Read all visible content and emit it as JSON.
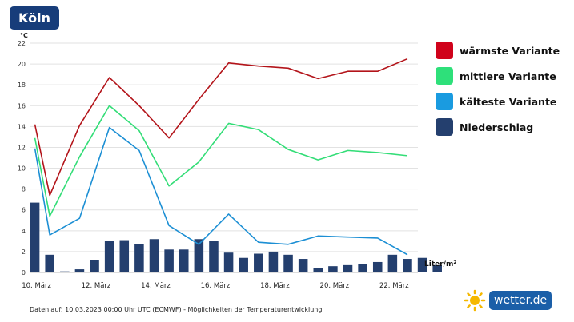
{
  "header": {
    "city": "Köln",
    "unit": "°C"
  },
  "legend": [
    {
      "label": "wärmste Variante",
      "color": "#d0021b",
      "shape": "swatch"
    },
    {
      "label": "mittlere Variante",
      "color": "#2ee07a",
      "shape": "swatch"
    },
    {
      "label": "kälteste Variante",
      "color": "#1a9be0",
      "shape": "swatch"
    },
    {
      "label": "Niederschlag",
      "color": "#243f6e",
      "shape": "swatch"
    }
  ],
  "chart_data": {
    "type": "line",
    "title": "",
    "ylabel": "°C",
    "ylim": [
      0,
      22
    ],
    "yticks": [
      0,
      2,
      4,
      6,
      8,
      10,
      12,
      14,
      16,
      18,
      20,
      22
    ],
    "xtick_labels": [
      "10. März",
      "12. März",
      "14. März",
      "16. März",
      "18. März",
      "20. März",
      "22. März"
    ],
    "grid": true,
    "legend_position": "right",
    "x_days": [
      10,
      11,
      12,
      13,
      14,
      15,
      16,
      17,
      18,
      19,
      20,
      21,
      22
    ],
    "series": [
      {
        "name": "wärmste Variante",
        "color": "#b3141a",
        "values": [
          14.2,
          7.4,
          14.1,
          18.7,
          16.0,
          12.9,
          16.6,
          20.1,
          19.8,
          19.6,
          18.6,
          19.3,
          19.3,
          20.5
        ],
        "x": [
          10,
          10.5,
          11.5,
          12.5,
          13.5,
          14.5,
          15.5,
          16.5,
          17.5,
          18.5,
          19.5,
          20.5,
          21.5,
          22.5
        ]
      },
      {
        "name": "mittlere Variante",
        "color": "#33dd77",
        "values": [
          12.9,
          5.4,
          11.1,
          16.0,
          13.6,
          8.3,
          10.6,
          14.3,
          13.7,
          11.8,
          10.8,
          11.7,
          11.5,
          11.2
        ],
        "x": [
          10,
          10.5,
          11.5,
          12.5,
          13.5,
          14.5,
          15.5,
          16.5,
          17.5,
          18.5,
          19.5,
          20.5,
          21.5,
          22.5
        ]
      },
      {
        "name": "kälteste Variante",
        "color": "#1c8fd4",
        "values": [
          11.9,
          3.6,
          5.2,
          13.9,
          11.7,
          4.5,
          2.7,
          5.6,
          2.9,
          2.7,
          3.5,
          3.4,
          3.3,
          1.7
        ],
        "x": [
          10,
          10.5,
          11.5,
          12.5,
          13.5,
          14.5,
          15.5,
          16.5,
          17.5,
          18.5,
          19.5,
          20.5,
          21.5,
          22.5
        ]
      }
    ],
    "precipitation": {
      "name": "Niederschlag",
      "unit": "Liter/m²",
      "color": "#243f6e",
      "values": [
        6.7,
        1.7,
        0.1,
        0.3,
        1.2,
        3.0,
        3.1,
        2.7,
        3.2,
        2.2,
        2.2,
        3.2,
        3.0,
        1.9,
        1.4,
        1.8,
        2.0,
        1.7,
        1.3,
        0.4,
        0.6,
        0.7,
        0.8,
        1.0,
        1.7,
        1.3,
        1.4,
        0.7
      ]
    }
  },
  "footer": {
    "text": "Datenlauf: 10.03.2023 00:00 Uhr UTC (ECMWF) - Möglichkeiten der Temperaturentwicklung"
  },
  "brand": {
    "text": "wetter.de"
  }
}
